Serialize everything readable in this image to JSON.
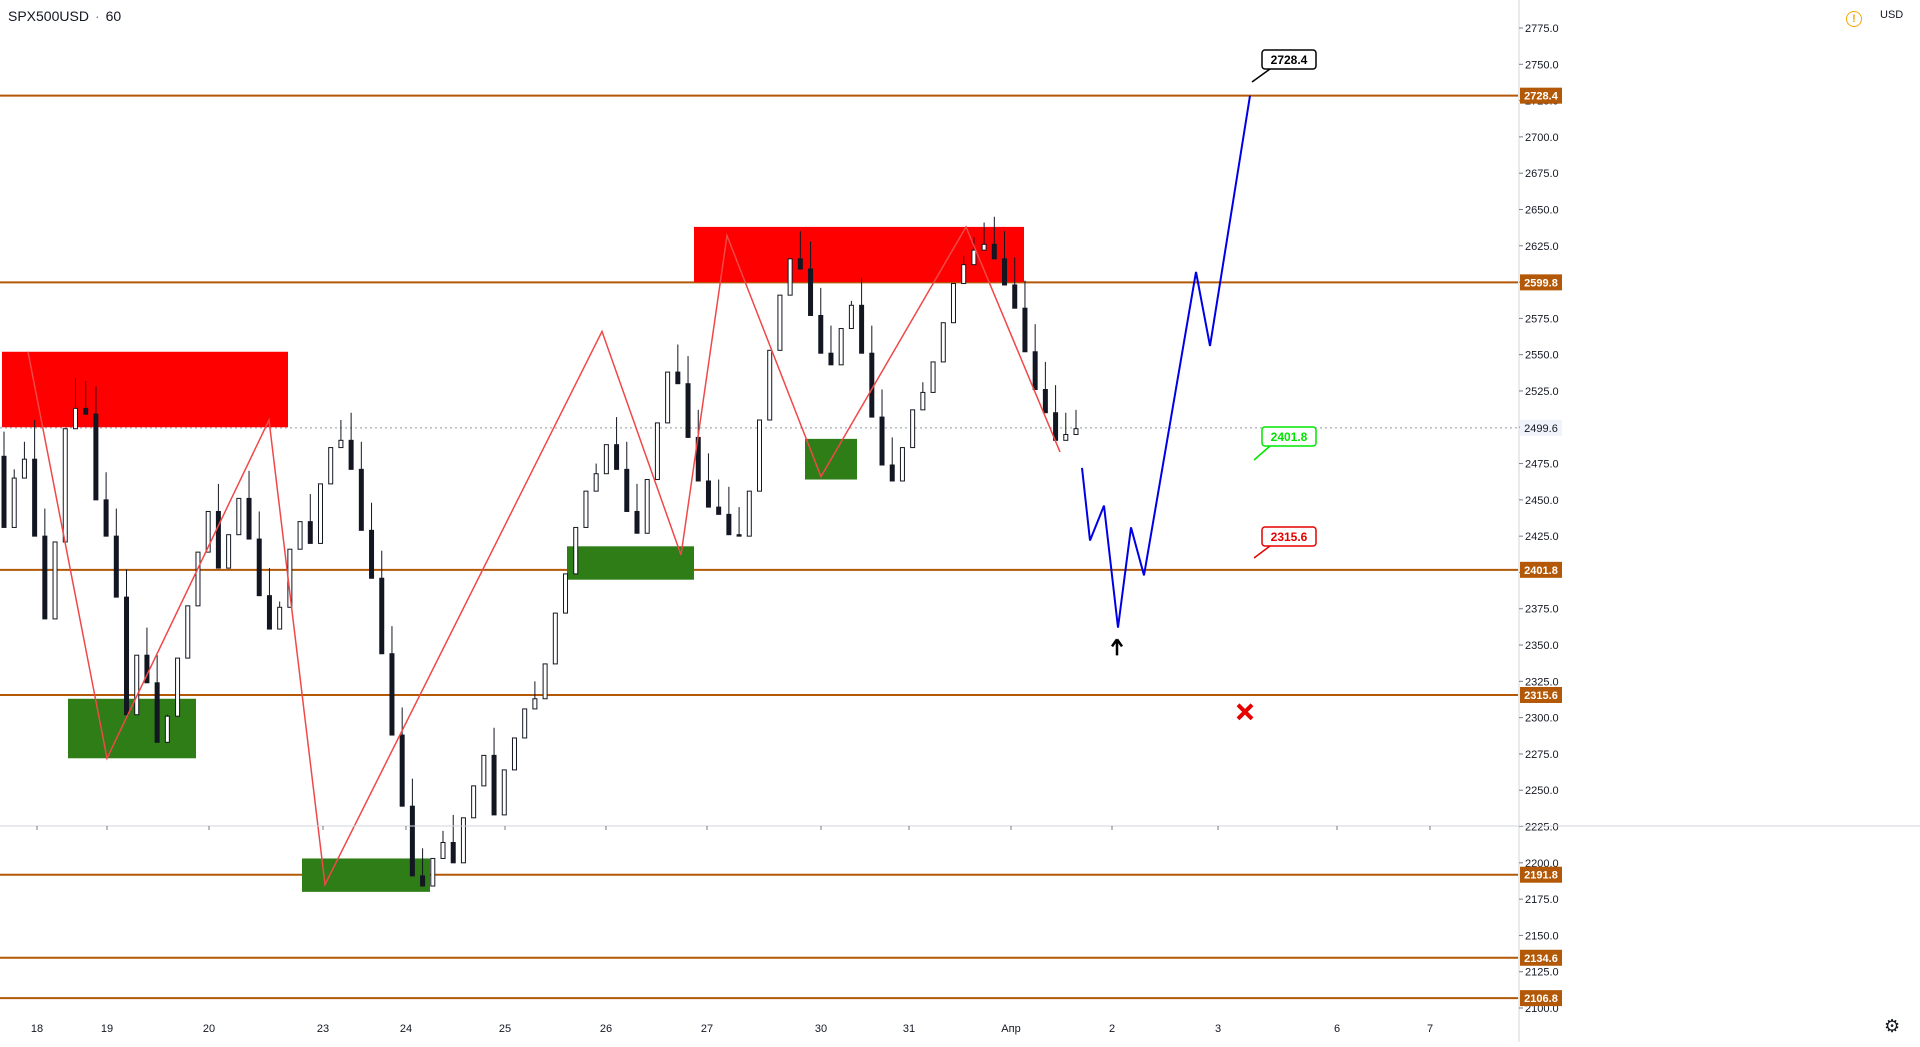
{
  "header": {
    "symbol": "SPX500USD",
    "separator": "·",
    "interval": "60"
  },
  "price_axis": {
    "currency": "USD"
  },
  "colors": {
    "level_line": "#b35806",
    "level_label_bg": "#b35806",
    "resistance_zone": "#ff0000",
    "support_zone": "#2e7d17",
    "zigzag": "#f04848",
    "projection": "#0000e6",
    "candle": "#131722",
    "last_price_line": "#9598a1",
    "callout_target": "#000000",
    "callout_support": "#00e600",
    "callout_stop": "#e60000"
  },
  "icons": {
    "warning": "warning-icon",
    "settings": "gear-icon",
    "arrow": "up-arrow-icon",
    "stop": "x-mark-icon"
  },
  "chart_data": {
    "type": "candlestick",
    "title": "SPX500USD · 60",
    "ylim": [
      2092,
      2783
    ],
    "y_ticks": [
      2100,
      2125,
      2150,
      2175,
      2200,
      2225,
      2250,
      2275,
      2300,
      2325,
      2350,
      2375,
      2400,
      2425,
      2450,
      2475,
      2500,
      2525,
      2550,
      2575,
      2600,
      2625,
      2650,
      2675,
      2700,
      2725,
      2750,
      2775
    ],
    "x_ticks": [
      "18",
      "19",
      "20",
      "23",
      "24",
      "25",
      "26",
      "27",
      "30",
      "31",
      "Апр",
      "2",
      "3",
      "6",
      "7"
    ],
    "last_price": 2499.6,
    "levels": [
      2728.4,
      2599.8,
      2401.8,
      2315.6,
      2191.8,
      2134.6,
      2106.8
    ],
    "zones": [
      {
        "kind": "resistance",
        "from": "18",
        "to": "20",
        "low": 2500,
        "high": 2552
      },
      {
        "kind": "resistance",
        "from": "27",
        "to": "31",
        "low": 2600,
        "high": 2638
      },
      {
        "kind": "support",
        "from": "19",
        "to": "20",
        "low": 2272,
        "high": 2313
      },
      {
        "kind": "support",
        "from": "23",
        "to": "24",
        "low": 2180,
        "high": 2203
      },
      {
        "kind": "support",
        "from": "26",
        "to": "27",
        "low": 2395,
        "high": 2418
      },
      {
        "kind": "support",
        "from": "30",
        "to": "30",
        "low": 2464,
        "high": 2492
      }
    ],
    "zigzag": [
      {
        "x": "18",
        "y": 2552
      },
      {
        "x": "19",
        "y": 2272
      },
      {
        "x": "20",
        "y": 2505
      },
      {
        "x": "23",
        "y": 2185
      },
      {
        "x": "26",
        "y": 2566
      },
      {
        "x": "27",
        "y": 2412
      },
      {
        "x": "27",
        "y": 2632
      },
      {
        "x": "30",
        "y": 2466
      },
      {
        "x": "31",
        "y": 2638
      },
      {
        "x": "Апр",
        "y": 2483
      }
    ],
    "projection": [
      2472,
      2422,
      2446,
      2362,
      2431,
      2398,
      2607,
      2556,
      2728.4
    ],
    "callouts": [
      {
        "label": "2728.4",
        "kind": "target"
      },
      {
        "label": "2401.8",
        "kind": "support"
      },
      {
        "label": "2315.6",
        "kind": "stop"
      }
    ],
    "candles": [
      [
        2480,
        2497,
        2434,
        2431
      ],
      [
        2431,
        2471,
        2495,
        2465
      ],
      [
        2465,
        2490,
        2465,
        2478
      ],
      [
        2478,
        2505,
        2428,
        2425
      ],
      [
        2425,
        2444,
        2374,
        2368
      ],
      [
        2368,
        2387,
        2427,
        2421
      ],
      [
        2421,
        2440,
        2505,
        2499
      ],
      [
        2499,
        2534,
        2519,
        2513
      ],
      [
        2513,
        2532,
        2515,
        2509
      ],
      [
        2509,
        2528,
        2456,
        2450
      ],
      [
        2450,
        2469,
        2431,
        2425
      ],
      [
        2425,
        2444,
        2389,
        2383
      ],
      [
        2383,
        2402,
        2308,
        2302
      ],
      [
        2302,
        2321,
        2349,
        2343
      ],
      [
        2343,
        2362,
        2330,
        2324
      ],
      [
        2324,
        2343,
        2289,
        2283
      ],
      [
        2283,
        2302,
        2307,
        2301
      ],
      [
        2301,
        2320,
        2347,
        2341
      ],
      [
        2341,
        2360,
        2383,
        2377
      ],
      [
        2377,
        2396,
        2420,
        2414
      ],
      [
        2414,
        2433,
        2448,
        2442
      ],
      [
        2442,
        2461,
        2409,
        2403
      ],
      [
        2403,
        2422,
        2432,
        2426
      ],
      [
        2426,
        2445,
        2457,
        2451
      ],
      [
        2451,
        2470,
        2429,
        2423
      ],
      [
        2423,
        2442,
        2390,
        2384
      ],
      [
        2384,
        2403,
        2367,
        2361
      ],
      [
        2361,
        2380,
        2382,
        2376
      ],
      [
        2376,
        2395,
        2422,
        2416
      ],
      [
        2416,
        2435,
        2441,
        2435
      ],
      [
        2435,
        2454,
        2426,
        2420
      ],
      [
        2420,
        2439,
        2467,
        2461
      ],
      [
        2461,
        2480,
        2492,
        2486
      ],
      [
        2486,
        2505,
        2497,
        2491
      ],
      [
        2491,
        2510,
        2477,
        2471
      ],
      [
        2471,
        2490,
        2435,
        2429
      ],
      [
        2429,
        2448,
        2402,
        2396
      ],
      [
        2396,
        2415,
        2350,
        2344
      ],
      [
        2344,
        2363,
        2294,
        2288
      ],
      [
        2288,
        2307,
        2245,
        2239
      ],
      [
        2239,
        2258,
        2197,
        2191
      ],
      [
        2191,
        2210,
        2190,
        2184
      ],
      [
        2184,
        2203,
        2209,
        2203
      ],
      [
        2203,
        2222,
        2220,
        2214
      ],
      [
        2214,
        2233,
        2206,
        2200
      ],
      [
        2200,
        2219,
        2237,
        2231
      ],
      [
        2231,
        2250,
        2259,
        2253
      ],
      [
        2253,
        2272,
        2280,
        2274
      ],
      [
        2274,
        2293,
        2239,
        2233
      ],
      [
        2233,
        2252,
        2270,
        2264
      ],
      [
        2264,
        2283,
        2292,
        2286
      ],
      [
        2286,
        2305,
        2312,
        2306
      ],
      [
        2306,
        2325,
        2319,
        2313
      ],
      [
        2313,
        2332,
        2343,
        2337
      ],
      [
        2337,
        2356,
        2378,
        2372
      ],
      [
        2372,
        2391,
        2405,
        2399
      ],
      [
        2399,
        2418,
        2437,
        2431
      ],
      [
        2431,
        2450,
        2462,
        2456
      ],
      [
        2456,
        2475,
        2474,
        2468
      ],
      [
        2468,
        2487,
        2494,
        2488
      ],
      [
        2488,
        2507,
        2477,
        2471
      ],
      [
        2471,
        2490,
        2448,
        2442
      ],
      [
        2442,
        2461,
        2433,
        2427
      ],
      [
        2427,
        2446,
        2470,
        2464
      ],
      [
        2464,
        2483,
        2509,
        2503
      ],
      [
        2503,
        2522,
        2544,
        2538
      ],
      [
        2538,
        2557,
        2536,
        2530
      ],
      [
        2530,
        2549,
        2499,
        2493
      ],
      [
        2493,
        2512,
        2469,
        2463
      ],
      [
        2463,
        2482,
        2451,
        2445
      ],
      [
        2445,
        2464,
        2446,
        2440
      ],
      [
        2440,
        2459,
        2432,
        2426
      ],
      [
        2426,
        2445,
        2431,
        2425
      ],
      [
        2425,
        2444,
        2462,
        2456
      ],
      [
        2456,
        2475,
        2511,
        2505
      ],
      [
        2505,
        2524,
        2559,
        2553
      ],
      [
        2553,
        2572,
        2597,
        2591
      ],
      [
        2591,
        2610,
        2622,
        2616
      ],
      [
        2616,
        2635,
        2615,
        2609
      ],
      [
        2609,
        2628,
        2583,
        2577
      ],
      [
        2577,
        2596,
        2557,
        2551
      ],
      [
        2551,
        2570,
        2549,
        2543
      ],
      [
        2543,
        2562,
        2574,
        2568
      ],
      [
        2568,
        2587,
        2590,
        2584
      ],
      [
        2584,
        2603,
        2557,
        2551
      ],
      [
        2551,
        2570,
        2513,
        2507
      ],
      [
        2507,
        2526,
        2480,
        2474
      ],
      [
        2474,
        2493,
        2469,
        2463
      ],
      [
        2463,
        2482,
        2492,
        2486
      ],
      [
        2486,
        2505,
        2518,
        2512
      ],
      [
        2512,
        2531,
        2530,
        2524
      ],
      [
        2524,
        2543,
        2551,
        2545
      ],
      [
        2545,
        2564,
        2578,
        2572
      ],
      [
        2572,
        2591,
        2605,
        2599
      ],
      [
        2599,
        2618,
        2618,
        2612
      ],
      [
        2612,
        2631,
        2628,
        2622
      ],
      [
        2622,
        2641,
        2632,
        2626
      ],
      [
        2626,
        2645,
        2622,
        2616
      ],
      [
        2616,
        2635,
        2604,
        2598
      ],
      [
        2598,
        2617,
        2588,
        2582
      ],
      [
        2582,
        2601,
        2558,
        2552
      ],
      [
        2552,
        2571,
        2532,
        2526
      ],
      [
        2526,
        2545,
        2516,
        2510
      ],
      [
        2510,
        2529,
        2497,
        2491
      ],
      [
        2491,
        2510,
        2499,
        2495
      ],
      [
        2495,
        2512,
        2503,
        2499
      ]
    ]
  }
}
